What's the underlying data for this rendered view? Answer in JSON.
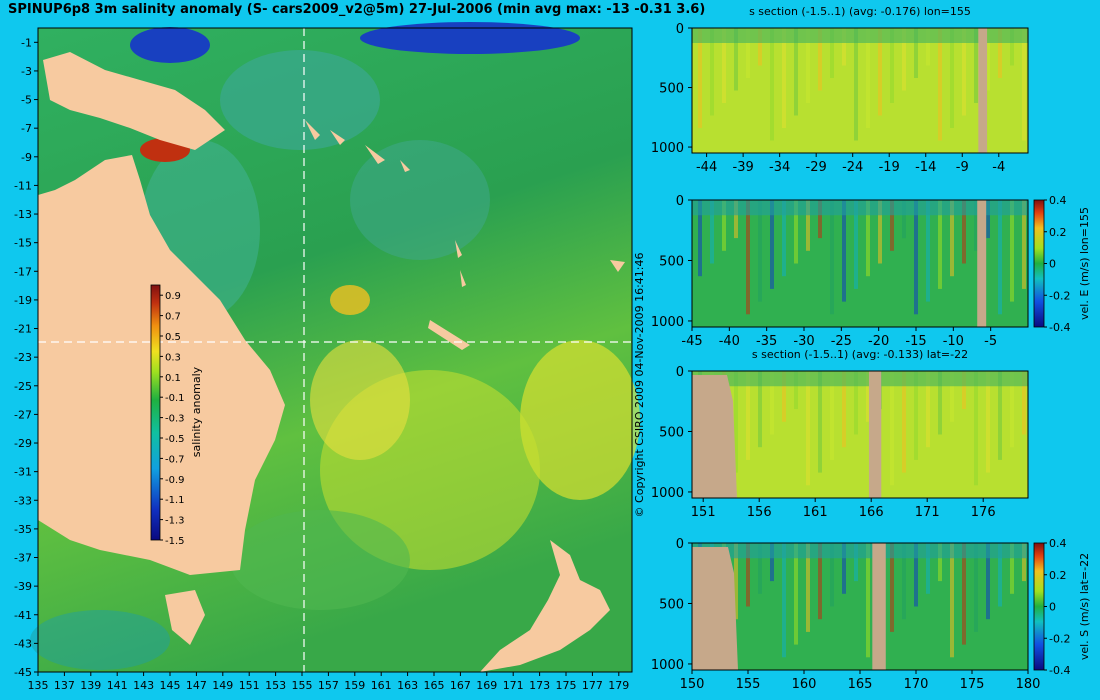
{
  "title": "SPINUP6p8 3m salinity anomaly (S- cars2009_v2@5m) 27-Jul-2006 (min avg max: -13 -0.31 3.6)",
  "copyright": "© Copyright CSIRO 2009   04-Nov-2009 16:41:46",
  "colors": {
    "background": "#0fc8ee",
    "land": "#f7caa0",
    "section_land": "#c6a88a",
    "crosshair": "#ffffff"
  },
  "chart_data": [
    {
      "type": "heatmap",
      "name": "map",
      "xlabel": "",
      "ylabel": "",
      "xlim": [
        135,
        180
      ],
      "ylim": [
        -45,
        0
      ],
      "xticks": [
        135,
        137,
        139,
        141,
        143,
        145,
        147,
        149,
        151,
        153,
        155,
        157,
        159,
        161,
        163,
        165,
        167,
        169,
        171,
        173,
        175,
        177,
        179
      ],
      "yticks": [
        -1,
        -3,
        -5,
        -7,
        -9,
        -11,
        -13,
        -15,
        -17,
        -19,
        -21,
        -23,
        -25,
        -27,
        -29,
        -31,
        -33,
        -35,
        -37,
        -39,
        -41,
        -43,
        -45
      ],
      "crosshair": {
        "lon": 155,
        "lat": -22
      },
      "colorbar": {
        "label": "salinity anomaly",
        "range": [
          -1.5,
          1.0
        ],
        "ticks": [
          "0.9",
          "0.7",
          "0.5",
          "0.3",
          "0.1",
          "-0.1",
          "-0.3",
          "-0.5",
          "-0.7",
          "-0.9",
          "-1.1",
          "-1.3",
          "-1.5"
        ]
      }
    },
    {
      "type": "heatmap",
      "name": "s-section-lon155",
      "title": "s section (-1.5..1) (avg: -0.176) lon=155",
      "xlim": [
        -46,
        0
      ],
      "ylim": [
        1050,
        0
      ],
      "xticks": [
        "-44",
        "-39",
        "-34",
        "-29",
        "-24",
        "-19",
        "-14",
        "-9",
        "-4"
      ],
      "yticks": [
        "0",
        "500",
        "1000"
      ],
      "land_x": [
        -6.8,
        -5.6
      ]
    },
    {
      "type": "heatmap",
      "name": "vel-e-section-lon155",
      "title": "",
      "xlim": [
        -45,
        0
      ],
      "ylim": [
        1050,
        0
      ],
      "xticks": [
        "-45",
        "-40",
        "-35",
        "-30",
        "-25",
        "-20",
        "-15",
        "-10",
        "-5"
      ],
      "yticks": [
        "0",
        "500",
        "1000"
      ],
      "land_x": [
        -6.8,
        -5.6
      ],
      "colorbar": {
        "label": "vel. E (m/s) lon=155",
        "range": [
          -0.4,
          0.4
        ],
        "ticks": [
          "0.4",
          "0.2",
          "0",
          "-0.2",
          "-0.4"
        ]
      }
    },
    {
      "type": "heatmap",
      "name": "s-section-lat-22",
      "title": "s section (-1.5..1) (avg: -0.133) lat=-22",
      "xlim": [
        150,
        180
      ],
      "ylim": [
        1050,
        0
      ],
      "xticks": [
        "151",
        "156",
        "161",
        "166",
        "171",
        "176"
      ],
      "yticks": [
        "0",
        "500",
        "1000"
      ],
      "land_x": [
        165.8,
        166.9
      ]
    },
    {
      "type": "heatmap",
      "name": "vel-s-section-lat-22",
      "title": "",
      "xlim": [
        150,
        180
      ],
      "ylim": [
        1050,
        0
      ],
      "xticks": [
        "150",
        "155",
        "160",
        "165",
        "170",
        "175",
        "180"
      ],
      "yticks": [
        "0",
        "500",
        "1000"
      ],
      "land_x": [
        166.1,
        167.3
      ],
      "colorbar": {
        "label": "vel. S (m/s) lat=-22",
        "range": [
          -0.4,
          0.4
        ],
        "ticks": [
          "0.4",
          "0.2",
          "0",
          "-0.2",
          "-0.4"
        ]
      }
    }
  ]
}
